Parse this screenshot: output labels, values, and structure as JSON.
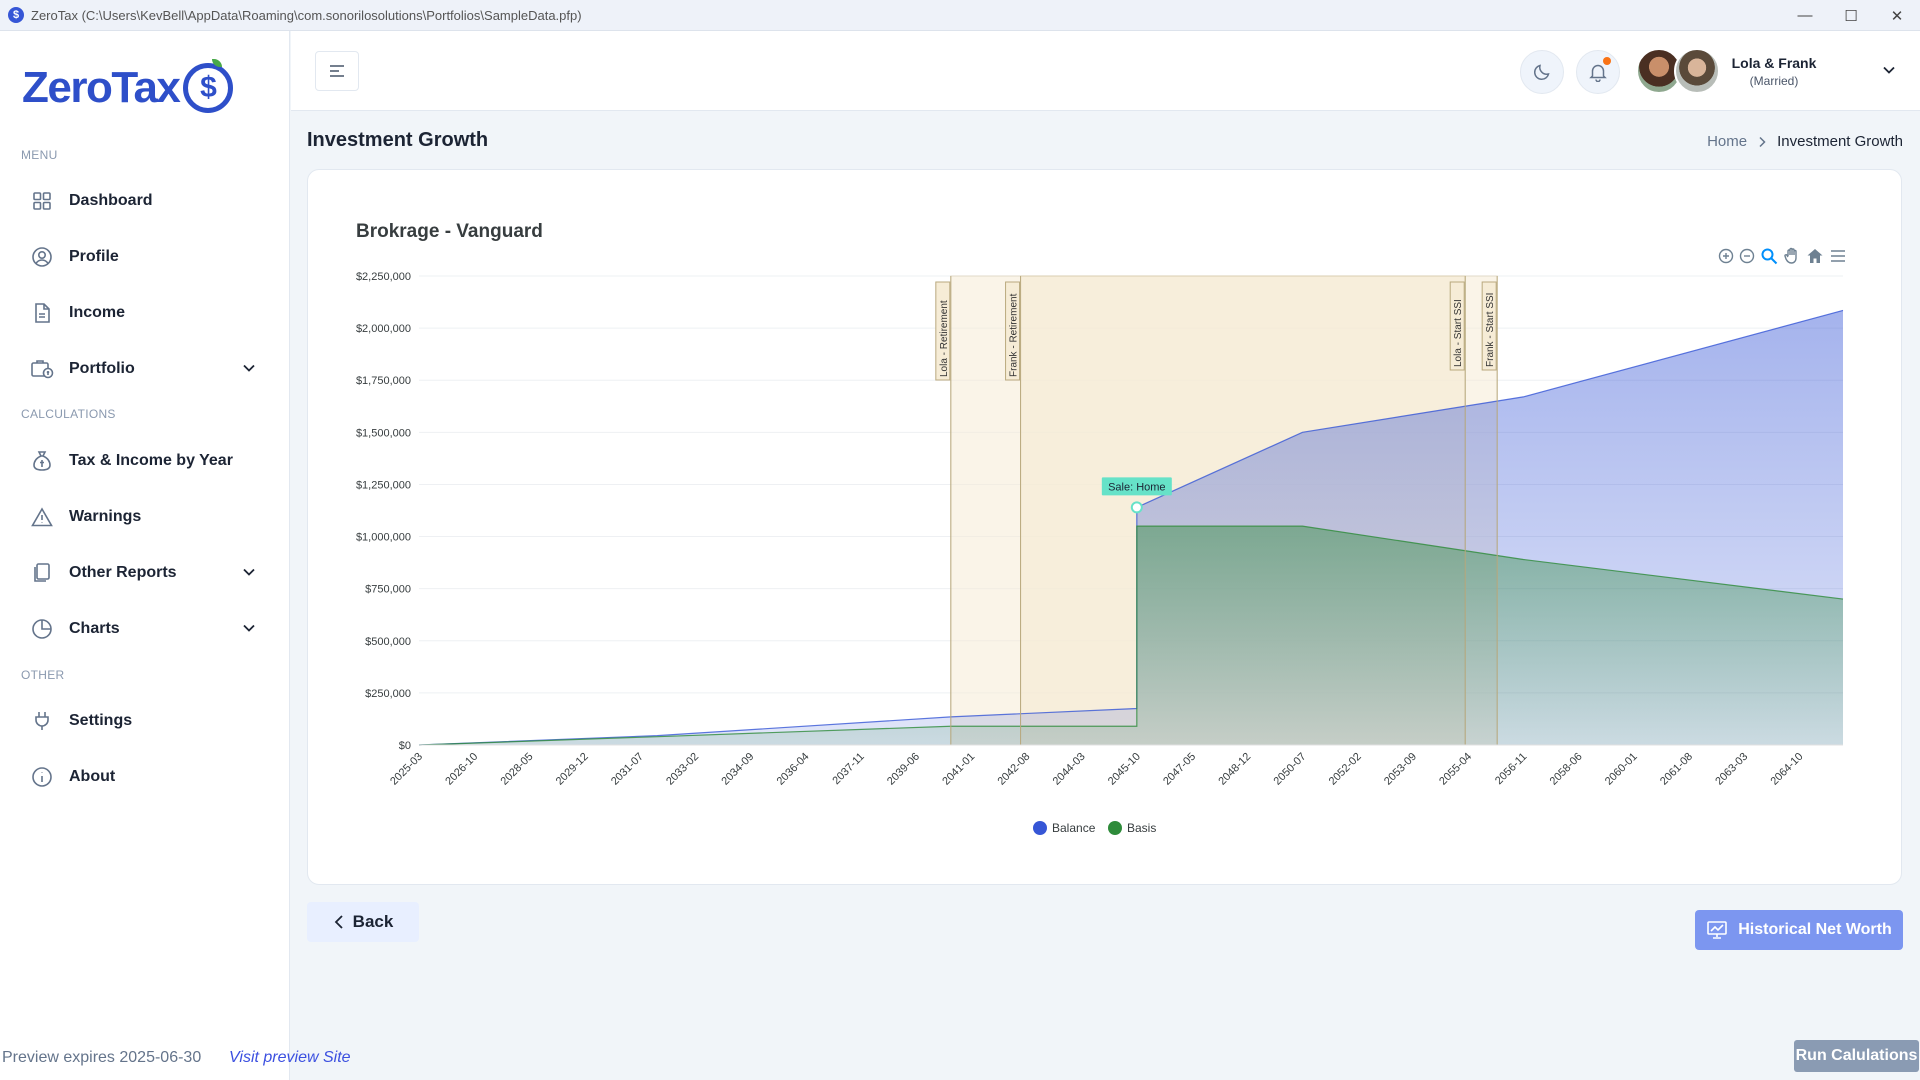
{
  "window": {
    "title": "ZeroTax (C:\\Users\\KevBell\\AppData\\Roaming\\com.sonorilosolutions\\Portfolios\\SampleData.pfp)"
  },
  "sidebar": {
    "logo_text": "ZeroTax",
    "sections": {
      "menu": "MENU",
      "calculations": "CALCULATIONS",
      "other": "OTHER"
    },
    "items": [
      {
        "label": "Dashboard",
        "icon": "grid-icon"
      },
      {
        "label": "Profile",
        "icon": "user-icon"
      },
      {
        "label": "Income",
        "icon": "document-icon"
      },
      {
        "label": "Portfolio",
        "icon": "portfolio-icon",
        "expandable": true
      },
      {
        "label": "Tax & Income by Year",
        "icon": "money-bag-icon"
      },
      {
        "label": "Warnings",
        "icon": "warning-icon"
      },
      {
        "label": "Other Reports",
        "icon": "reports-icon",
        "expandable": true
      },
      {
        "label": "Charts",
        "icon": "pie-chart-icon",
        "expandable": true
      },
      {
        "label": "Settings",
        "icon": "plug-icon"
      },
      {
        "label": "About",
        "icon": "info-icon"
      }
    ]
  },
  "header": {
    "user_name": "Lola & Frank",
    "user_status": "(Married)",
    "has_notification": true
  },
  "breadcrumb": {
    "page_title": "Investment Growth",
    "home": "Home",
    "current": "Investment Growth"
  },
  "chart_data": {
    "type": "area",
    "title": "Brokrage - Vanguard",
    "xlabel": "",
    "ylabel": "",
    "ylim": [
      0,
      2250000
    ],
    "y_ticks": [
      "$2,250,000",
      "$2,000,000",
      "$1,750,000",
      "$1,500,000",
      "$1,250,000",
      "$1,000,000",
      "$750,000",
      "$500,000",
      "$250,000",
      "$0"
    ],
    "x_ticks": [
      "2025-03",
      "2026-10",
      "2028-05",
      "2029-12",
      "2031-07",
      "2033-02",
      "2034-09",
      "2036-04",
      "2037-11",
      "2039-06",
      "2041-01",
      "2042-08",
      "2044-03",
      "2045-10",
      "2047-05",
      "2048-12",
      "2050-07",
      "2052-02",
      "2053-09",
      "2055-04",
      "2056-11",
      "2058-06",
      "2060-01",
      "2061-08",
      "2063-03",
      "2064-10"
    ],
    "series": [
      {
        "name": "Balance",
        "color": "#3656d6",
        "x": [
          "2025-03",
          "2032-01",
          "2040-06",
          "2045-10",
          "2045-10",
          "2050-07",
          "2056-11",
          "2066-01"
        ],
        "values": [
          0,
          45000,
          135000,
          175000,
          1140000,
          1500000,
          1670000,
          2085000
        ]
      },
      {
        "name": "Basis",
        "color": "#2e8b3a",
        "x": [
          "2025-03",
          "2032-01",
          "2040-06",
          "2045-10",
          "2045-10",
          "2050-07",
          "2056-11",
          "2066-01"
        ],
        "values": [
          0,
          40000,
          90000,
          90000,
          1050000,
          1050000,
          890000,
          700000
        ]
      }
    ],
    "annotations": [
      {
        "label": "Lola - Retirement",
        "x": "2040-06"
      },
      {
        "label": "Frank - Retirement",
        "x": "2042-06"
      },
      {
        "label": "Lola - Start SSI",
        "x": "2055-03"
      },
      {
        "label": "Frank - Start SSI",
        "x": "2056-02"
      }
    ],
    "point_annotation": {
      "label": "Sale: Home",
      "x": "2045-10",
      "value": 1140000
    },
    "legend_position": "bottom-center",
    "grid": true
  },
  "buttons": {
    "back": "Back",
    "historical_net_worth": "Historical Net Worth",
    "run_calculations": "Run Calulations"
  },
  "footer": {
    "preview_expires": "Preview expires 2025-06-30",
    "preview_link": "Visit preview Site"
  },
  "colors": {
    "accent": "#3c50e0",
    "balance": "#3656d6",
    "basis": "#2e8b3a",
    "annotation_fill": "#f6ecd6"
  }
}
